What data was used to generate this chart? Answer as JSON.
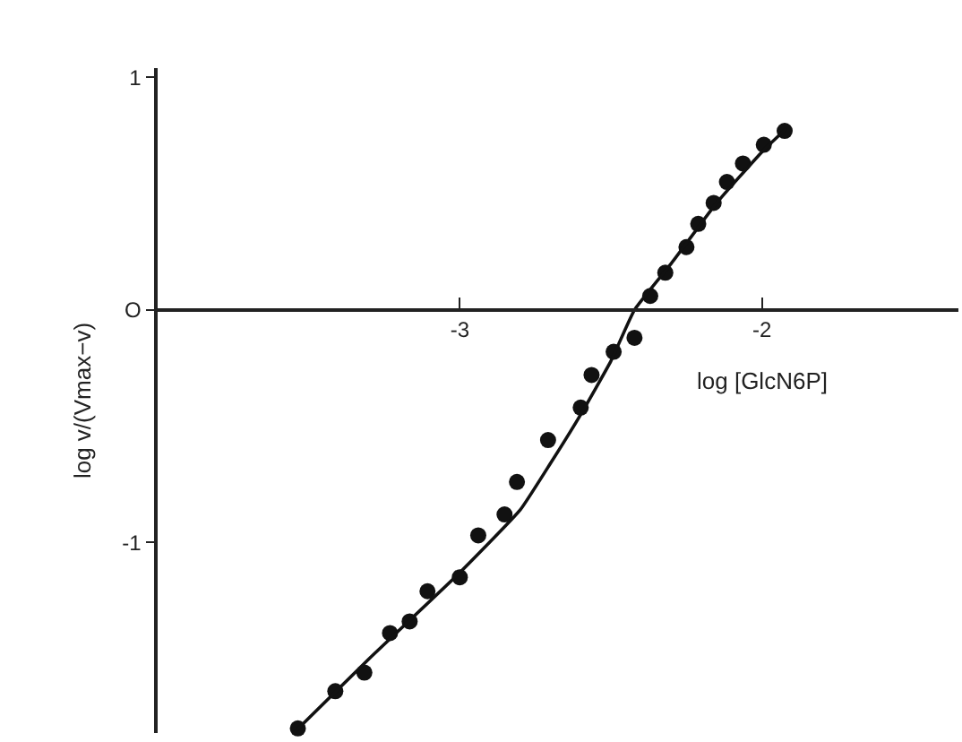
{
  "chart_data": {
    "type": "scatter",
    "xlabel": "log [GlcN6P]",
    "ylabel": "log v/(Vmax−v)",
    "xlim": [
      -4.0,
      -1.35
    ],
    "ylim": [
      -1.82,
      1.04
    ],
    "xticks": [
      -3,
      -2
    ],
    "yticks": [
      1,
      {
        "value": 0,
        "label": "O"
      },
      -1
    ],
    "marker": "circle",
    "series": [
      {
        "color": "#111111",
        "x": [
          -3.536,
          -3.412,
          -3.316,
          -3.231,
          -3.166,
          -3.107,
          -3.0,
          -2.939,
          -2.852,
          -2.811,
          -2.708,
          -2.6,
          -2.564,
          -2.491,
          -2.422,
          -2.37,
          -2.32,
          -2.25,
          -2.211,
          -2.16,
          -2.116,
          -2.063,
          -1.994,
          -1.925
        ],
        "values": [
          -1.8,
          -1.64,
          -1.56,
          -1.39,
          -1.34,
          -1.21,
          -1.15,
          -0.97,
          -0.88,
          -0.74,
          -0.56,
          -0.42,
          -0.28,
          -0.18,
          -0.12,
          0.06,
          0.16,
          0.27,
          0.37,
          0.46,
          0.55,
          0.63,
          0.71,
          0.77
        ]
      },
      {
        "type": "line",
        "color": "#111111",
        "line_style": "solid",
        "marker": "none",
        "x": [
          -3.55,
          -3.3,
          -3.0,
          -2.8,
          -2.7,
          -2.6,
          -2.5,
          -2.422,
          -2.3,
          -2.15,
          -2.0,
          -1.92
        ],
        "values": [
          -1.82,
          -1.5,
          -1.13,
          -0.86,
          -0.66,
          -0.45,
          -0.22,
          0.0,
          0.2,
          0.46,
          0.68,
          0.78
        ]
      }
    ]
  }
}
